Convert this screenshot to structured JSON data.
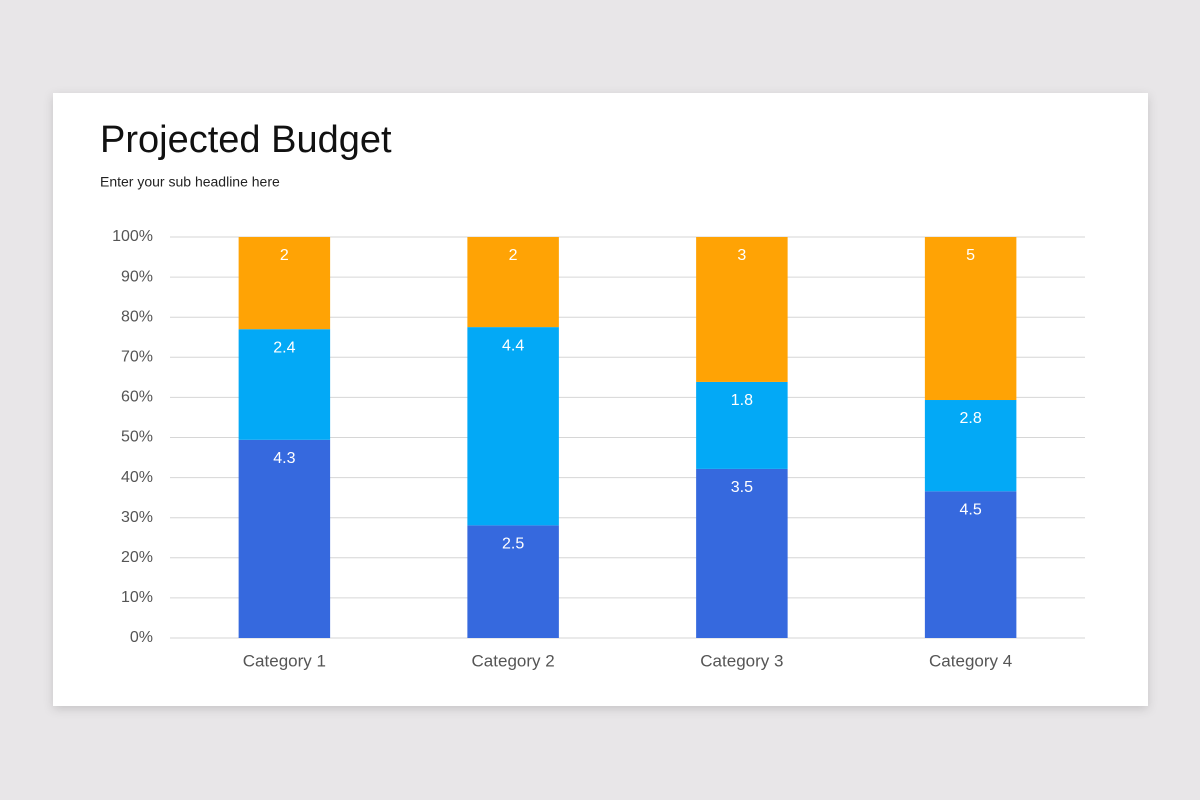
{
  "chart_data": {
    "type": "bar",
    "stack": "percent",
    "title": "Projected Budget",
    "subtitle": "Enter your sub headline here",
    "categories": [
      "Category 1",
      "Category 2",
      "Category 3",
      "Category 4"
    ],
    "series": [
      {
        "color": "#3669de",
        "values": [
          4.3,
          2.5,
          3.5,
          4.5
        ]
      },
      {
        "color": "#03a9f6",
        "values": [
          2.4,
          4.4,
          1.8,
          2.8
        ]
      },
      {
        "color": "#ffa305",
        "values": [
          2,
          2,
          3,
          5
        ]
      }
    ],
    "ylim": [
      0,
      100
    ],
    "yticks": [
      {
        "value": 0,
        "label": "0%"
      },
      {
        "value": 10,
        "label": "10%"
      },
      {
        "value": 20,
        "label": "20%"
      },
      {
        "value": 30,
        "label": "30%"
      },
      {
        "value": 40,
        "label": "40%"
      },
      {
        "value": 50,
        "label": "50%"
      },
      {
        "value": 60,
        "label": "60%"
      },
      {
        "value": 70,
        "label": "70%"
      },
      {
        "value": 80,
        "label": "80%"
      },
      {
        "value": 90,
        "label": "90%"
      },
      {
        "value": 100,
        "label": "100%"
      }
    ],
    "grid": true
  }
}
